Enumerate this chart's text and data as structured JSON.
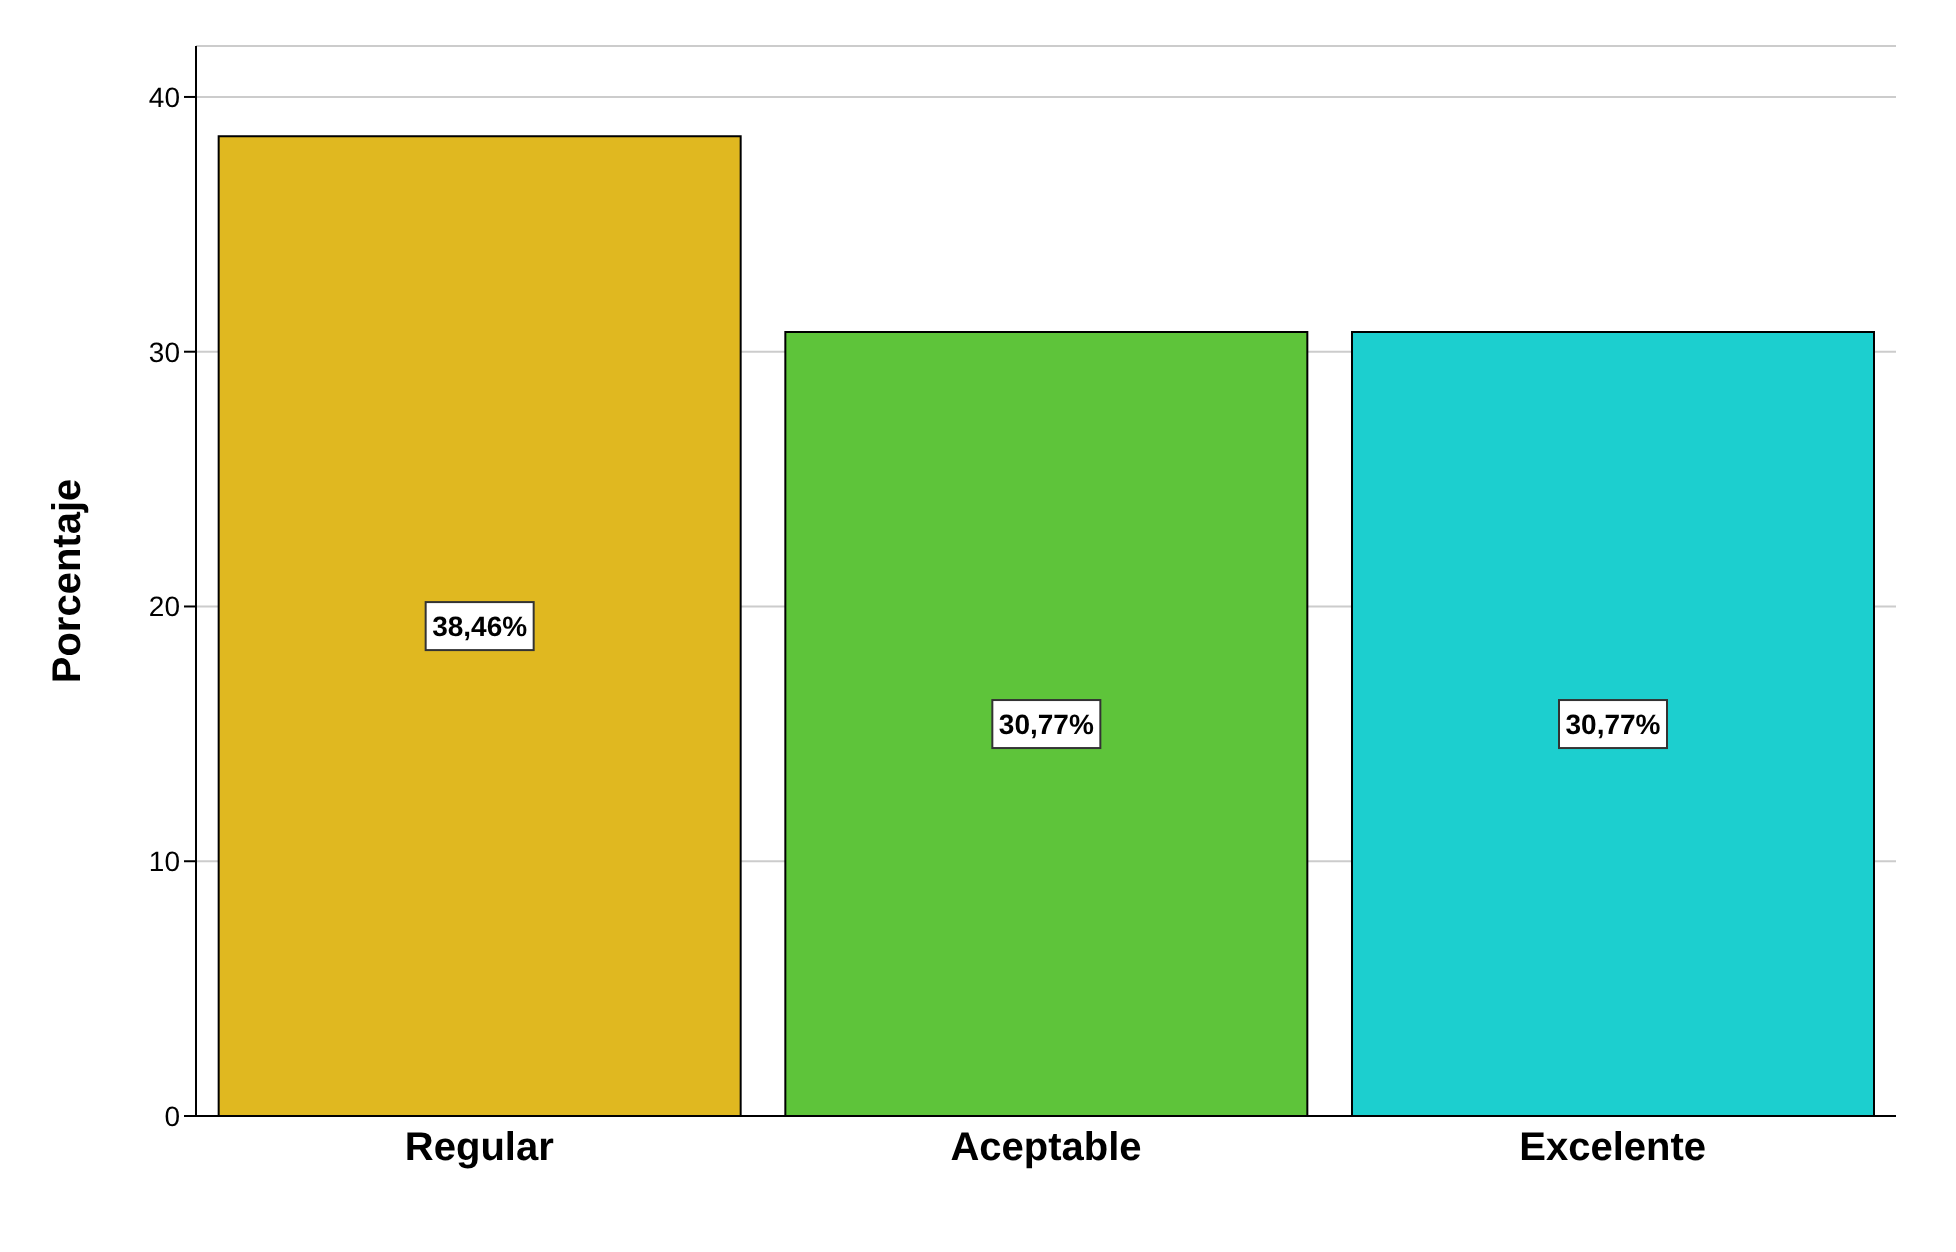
{
  "chart_data": {
    "type": "bar",
    "ylabel": "Porcentaje",
    "categories": [
      "Regular",
      "Aceptable",
      "Excelente"
    ],
    "values": [
      38.46,
      30.77,
      30.77
    ],
    "colors": [
      "#e0b820",
      "#5ec43a",
      "#1ccfcf"
    ],
    "value_labels": [
      "38,46%",
      "30,77%",
      "30,77%"
    ],
    "ylim": [
      0,
      42
    ],
    "yticks": [
      0,
      10,
      20,
      30,
      40
    ],
    "grid": "y"
  }
}
